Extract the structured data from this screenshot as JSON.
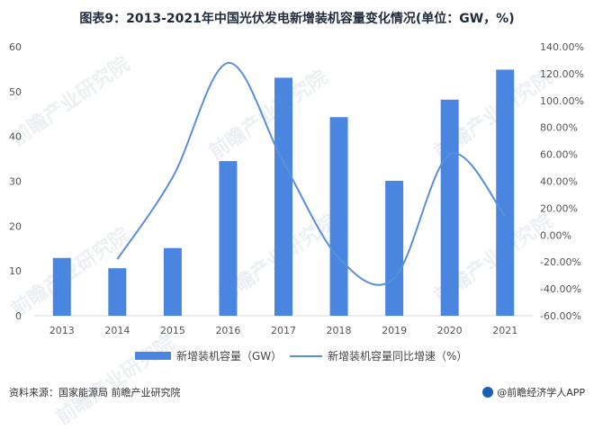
{
  "title": "图表9：2013-2021年中国光伏发电新增装机容量变化情况(单位：GW，%)",
  "footer": {
    "source": "资料来源：国家能源局 前瞻产业研究院",
    "brand": "@前瞻经济学人APP"
  },
  "watermark_text": "前瞻产业研究院",
  "colors": {
    "bar": "#4a86e0",
    "line": "#5a8fd8",
    "axis": "#d9d9d9"
  },
  "chart_data": {
    "type": "bar",
    "title": "图表9：2013-2021年中国光伏发电新增装机容量变化情况(单位：GW，%)",
    "categories": [
      "2013",
      "2014",
      "2015",
      "2016",
      "2017",
      "2018",
      "2019",
      "2020",
      "2021"
    ],
    "series": [
      {
        "name": "新增装机容量（GW）",
        "type": "bar",
        "axis": "left",
        "values": [
          12.9,
          10.6,
          15.1,
          34.5,
          53.1,
          44.3,
          30.1,
          48.2,
          54.9
        ]
      },
      {
        "name": "新增装机容量同比增速（%）",
        "type": "line",
        "axis": "right",
        "values": [
          null,
          -18,
          43,
          128,
          54,
          -17,
          -32,
          60,
          14
        ]
      }
    ],
    "y_left": {
      "min": 0,
      "max": 60,
      "ticks": [
        "0",
        "10",
        "20",
        "30",
        "40",
        "50",
        "60"
      ]
    },
    "y_right": {
      "min": -60,
      "max": 140,
      "ticks": [
        "-60.00%",
        "-40.00%",
        "-20.00%",
        "0.00%",
        "20.00%",
        "40.00%",
        "60.00%",
        "80.00%",
        "100.00%",
        "120.00%",
        "140.00%"
      ]
    },
    "legend_position": "bottom"
  }
}
